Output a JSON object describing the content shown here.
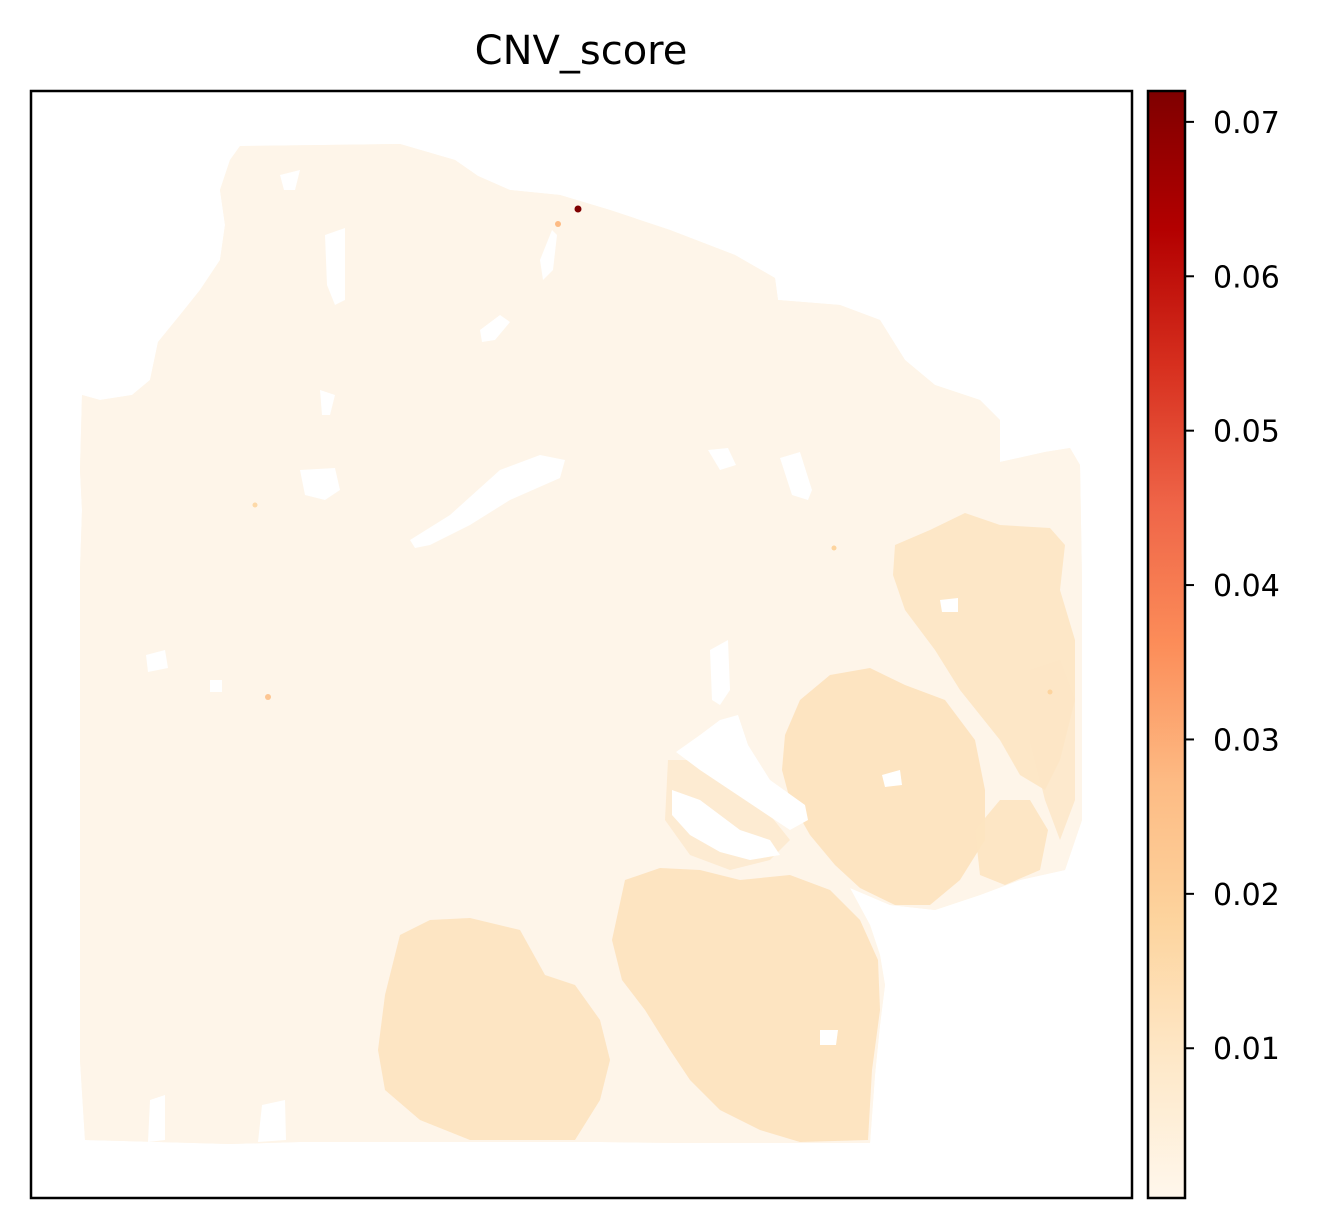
{
  "chart_data": {
    "type": "scatter",
    "title": "CNV_score",
    "subtitle": "",
    "xlabel": "",
    "ylabel": "",
    "x_ticks_visible": false,
    "y_ticks_visible": false,
    "grid": false,
    "legend": "none",
    "colormap": {
      "name": "OrRd",
      "stops": [
        "#fff7ec",
        "#fee8c8",
        "#fdd49e",
        "#fdbb84",
        "#fc8d59",
        "#ef6548",
        "#d7301f",
        "#b30000",
        "#7f0000"
      ]
    },
    "colorbar": {
      "range": [
        0.0003,
        0.072
      ],
      "ticks": [
        0.01,
        0.02,
        0.03,
        0.04,
        0.05,
        0.06,
        0.07
      ],
      "tick_labels": [
        "0.01",
        "0.02",
        "0.03",
        "0.04",
        "0.05",
        "0.06",
        "0.07"
      ]
    },
    "spot_score_summary": {
      "background_tissue": 0.003,
      "nodular_regions": 0.011,
      "max_spot": 0.072
    }
  }
}
